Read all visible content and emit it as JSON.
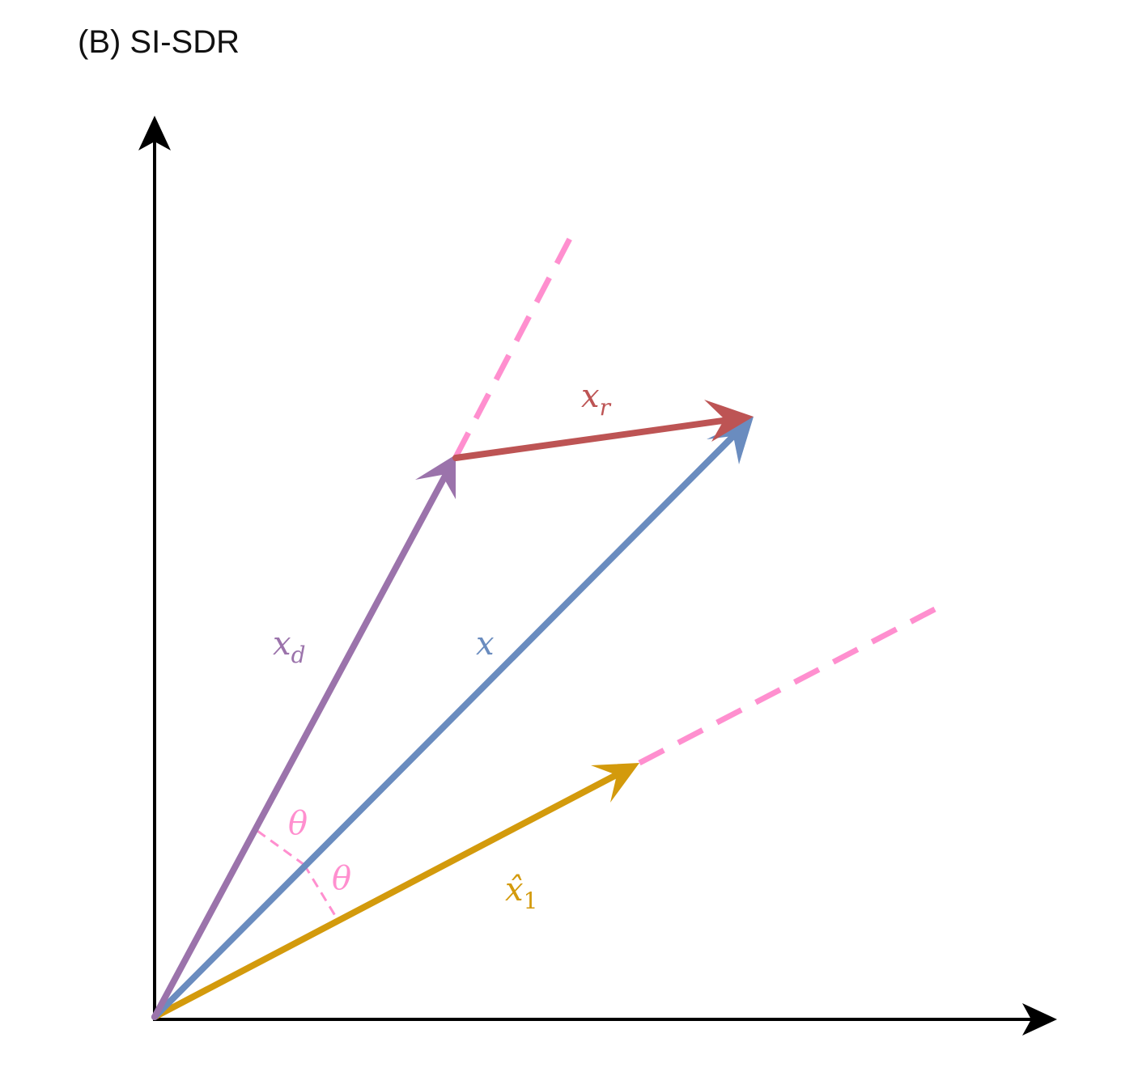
{
  "title": "(B) SI-SDR",
  "colors": {
    "axis": "#000000",
    "x": "#6a8cbf",
    "x_d": "#9b73ab",
    "x_r": "#bd5454",
    "x_hat": "#d39a0c",
    "projection": "#ff8fcf"
  },
  "labels": {
    "x": "x",
    "x_d": {
      "base": "x",
      "sub": "d"
    },
    "x_r": {
      "base": "x",
      "sub": "r"
    },
    "x_hat": {
      "base": "x̂",
      "sub": "1"
    },
    "theta_1": "θ",
    "theta_2": "θ"
  }
}
